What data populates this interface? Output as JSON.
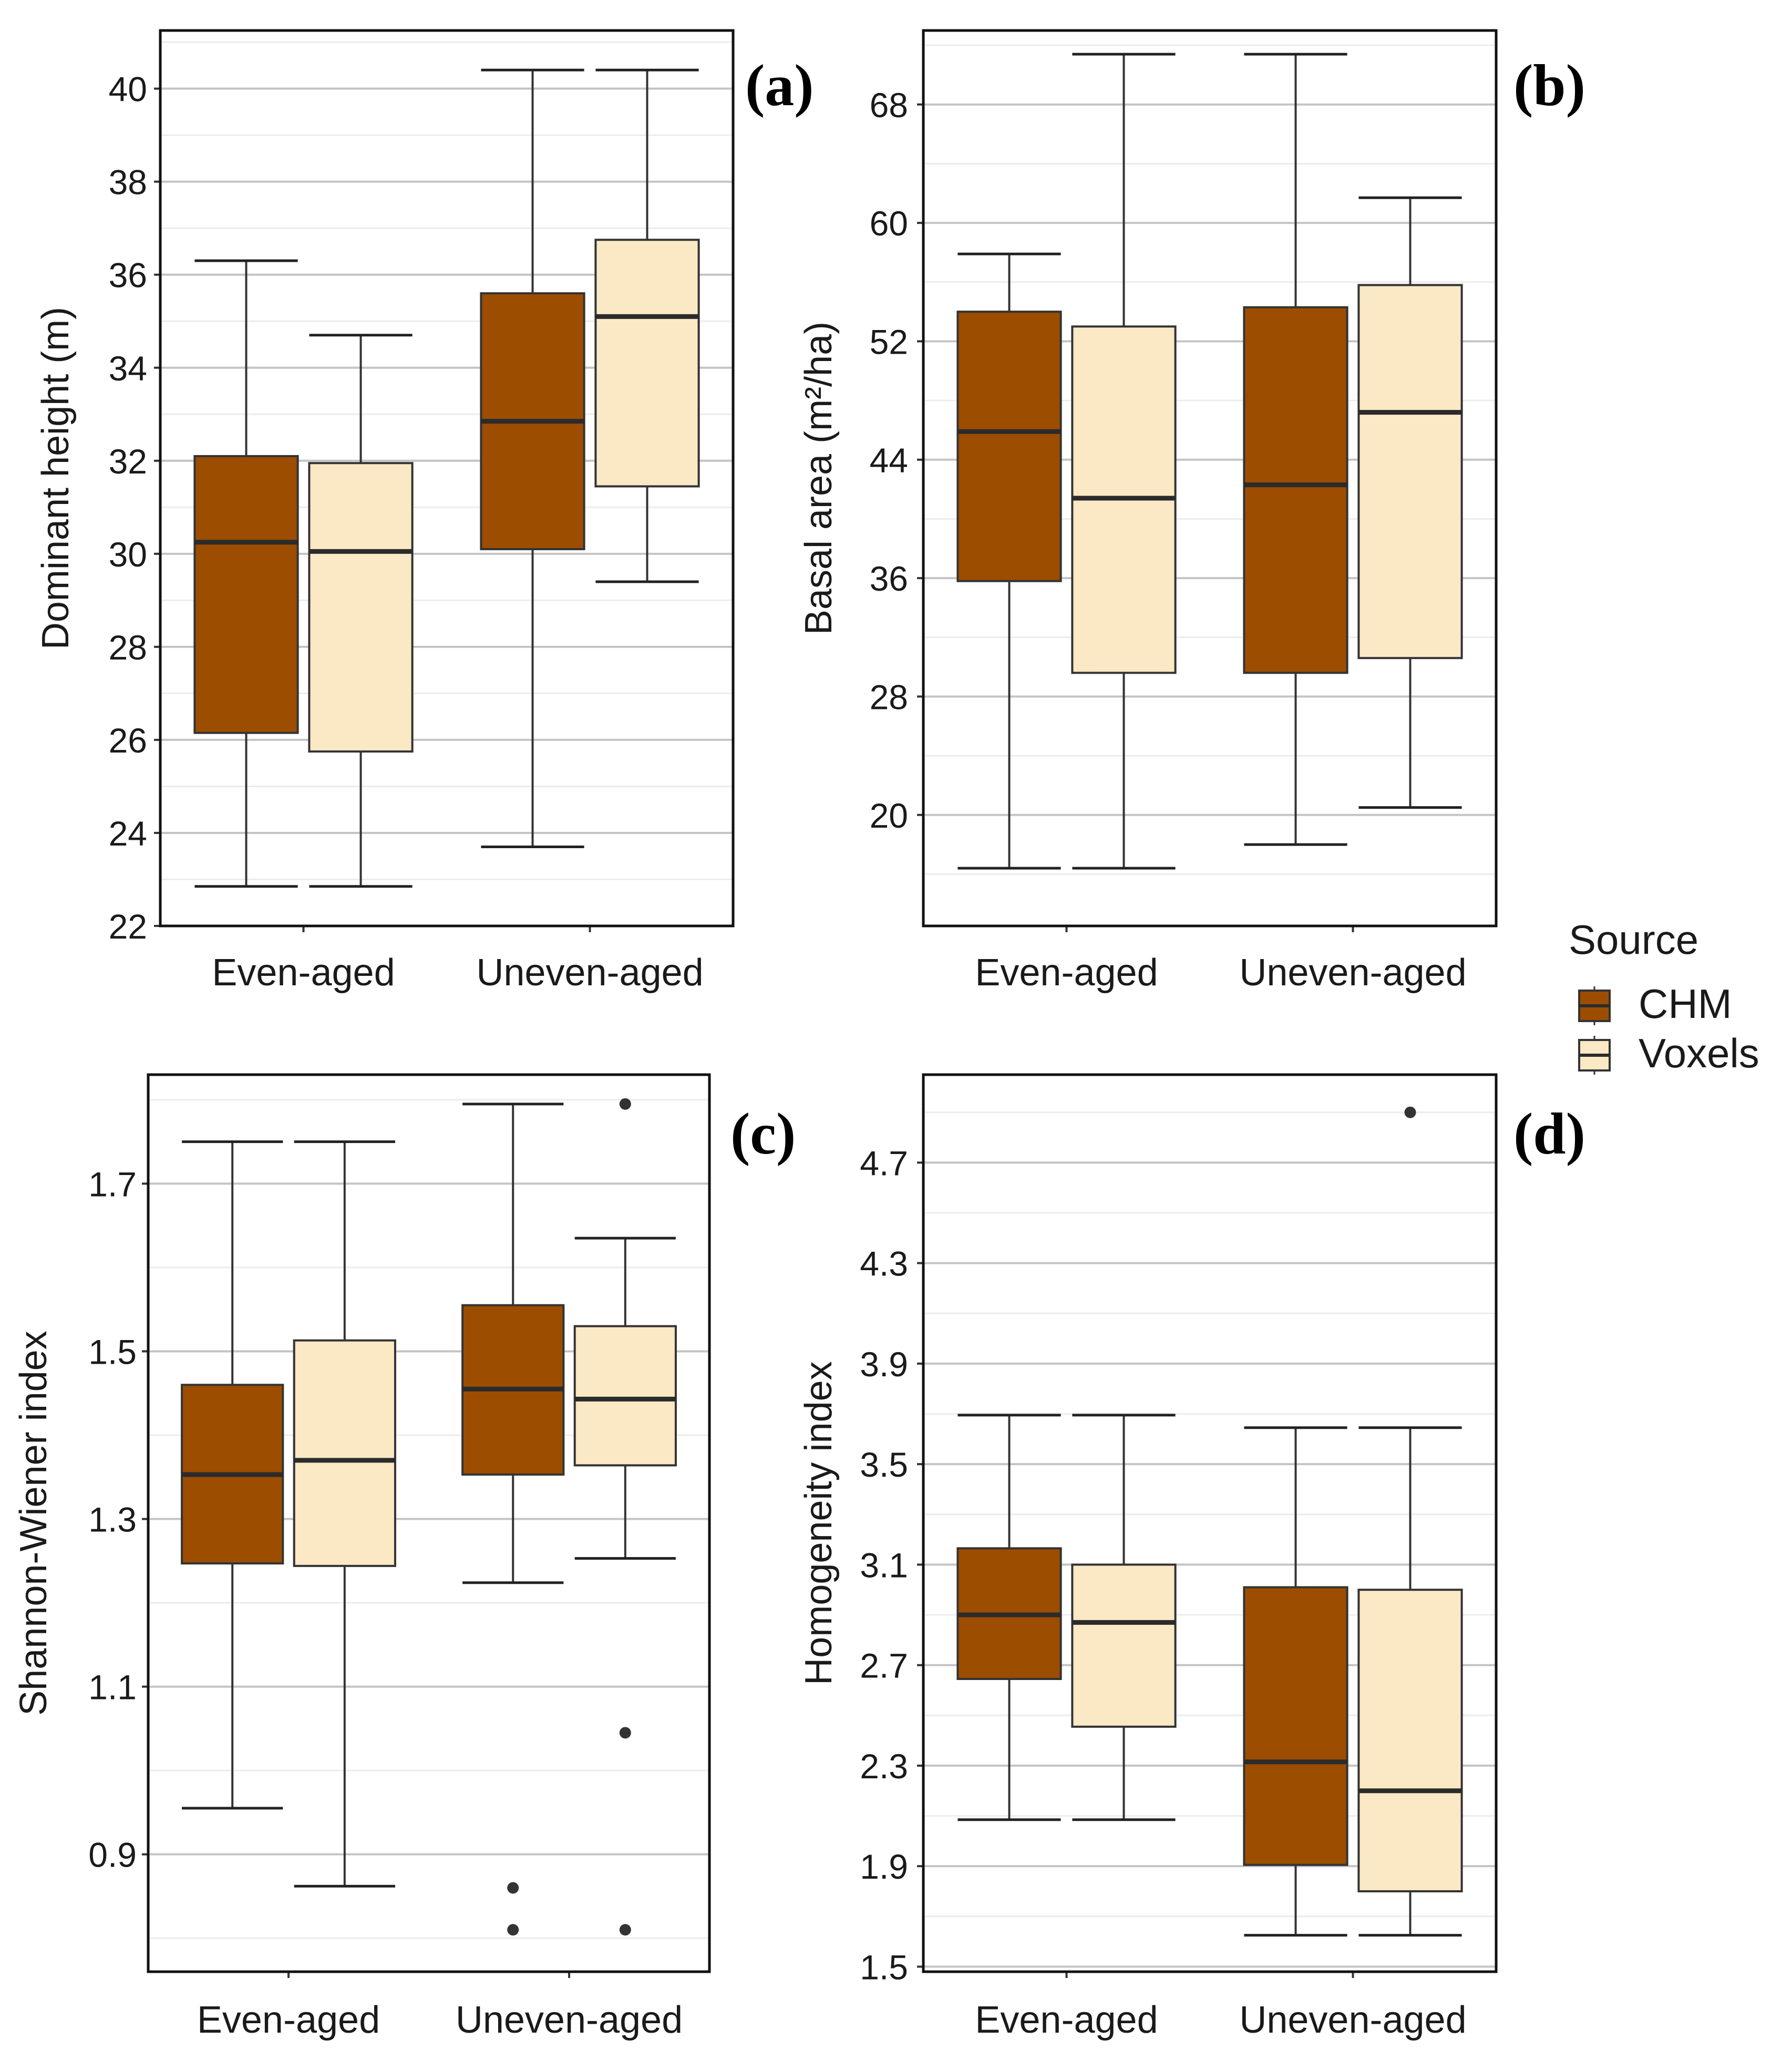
{
  "legend": {
    "title": "Source",
    "items": [
      {
        "label": "CHM",
        "color": "#9C4D00"
      },
      {
        "label": "Voxels",
        "color": "#FBE8C5"
      }
    ]
  },
  "chart_data": [
    {
      "type": "box",
      "panel_label": "(a)",
      "ylabel": "Dominant height (m)",
      "categories": [
        "Even-aged",
        "Uneven-aged"
      ],
      "ylim": [
        22,
        41.25
      ],
      "yticks": [
        22,
        24,
        26,
        28,
        30,
        32,
        34,
        36,
        38,
        40
      ],
      "ytick_labels": [
        "22",
        "24",
        "26",
        "28",
        "30",
        "32",
        "34",
        "36",
        "38",
        "40"
      ],
      "series": [
        {
          "name": "CHM",
          "boxes": [
            {
              "category": "Even-aged",
              "min": 22.85,
              "q1": 26.15,
              "median": 30.25,
              "q3": 32.1,
              "max": 36.3,
              "outliers": []
            },
            {
              "category": "Uneven-aged",
              "min": 23.7,
              "q1": 30.1,
              "median": 32.85,
              "q3": 35.6,
              "max": 40.4,
              "outliers": []
            }
          ]
        },
        {
          "name": "Voxels",
          "boxes": [
            {
              "category": "Even-aged",
              "min": 22.85,
              "q1": 25.75,
              "median": 30.05,
              "q3": 31.95,
              "max": 34.7,
              "outliers": []
            },
            {
              "category": "Uneven-aged",
              "min": 29.4,
              "q1": 31.45,
              "median": 35.1,
              "q3": 36.75,
              "max": 40.4,
              "outliers": []
            }
          ]
        }
      ]
    },
    {
      "type": "box",
      "panel_label": "(b)",
      "ylabel": "Basal area (m²/ha)",
      "categories": [
        "Even-aged",
        "Uneven-aged"
      ],
      "ylim": [
        12.5,
        73
      ],
      "yticks": [
        20,
        28,
        36,
        44,
        52,
        60,
        68
      ],
      "ytick_labels": [
        "20",
        "28",
        "36",
        "44",
        "52",
        "60",
        "68"
      ],
      "series": [
        {
          "name": "CHM",
          "boxes": [
            {
              "category": "Even-aged",
              "min": 16.4,
              "q1": 35.8,
              "median": 45.9,
              "q3": 54.0,
              "max": 57.9,
              "outliers": []
            },
            {
              "category": "Uneven-aged",
              "min": 18.0,
              "q1": 29.6,
              "median": 42.3,
              "q3": 54.3,
              "max": 71.4,
              "outliers": []
            }
          ]
        },
        {
          "name": "Voxels",
          "boxes": [
            {
              "category": "Even-aged",
              "min": 16.4,
              "q1": 29.6,
              "median": 41.4,
              "q3": 53.0,
              "max": 71.4,
              "outliers": []
            },
            {
              "category": "Uneven-aged",
              "min": 20.5,
              "q1": 30.6,
              "median": 47.2,
              "q3": 55.8,
              "max": 61.7,
              "outliers": []
            }
          ]
        }
      ]
    },
    {
      "type": "box",
      "panel_label": "(c)",
      "ylabel": "Shannon-Wiener index",
      "categories": [
        "Even-aged",
        "Uneven-aged"
      ],
      "ylim": [
        0.76,
        1.83
      ],
      "yticks": [
        0.9,
        1.1,
        1.3,
        1.5,
        1.7
      ],
      "ytick_labels": [
        "0.9",
        "1.1",
        "1.3",
        "1.5",
        "1.7"
      ],
      "series": [
        {
          "name": "CHM",
          "boxes": [
            {
              "category": "Even-aged",
              "min": 0.955,
              "q1": 1.247,
              "median": 1.353,
              "q3": 1.46,
              "max": 1.75,
              "outliers": []
            },
            {
              "category": "Uneven-aged",
              "min": 1.224,
              "q1": 1.353,
              "median": 1.455,
              "q3": 1.555,
              "max": 1.795,
              "outliers": [
                0.86,
                0.81
              ]
            }
          ]
        },
        {
          "name": "Voxels",
          "boxes": [
            {
              "category": "Even-aged",
              "min": 0.862,
              "q1": 1.244,
              "median": 1.37,
              "q3": 1.513,
              "max": 1.75,
              "outliers": []
            },
            {
              "category": "Uneven-aged",
              "min": 1.253,
              "q1": 1.364,
              "median": 1.443,
              "q3": 1.53,
              "max": 1.635,
              "outliers": [
                1.795,
                1.045,
                0.81
              ]
            }
          ]
        }
      ]
    },
    {
      "type": "box",
      "panel_label": "(d)",
      "ylabel": "Homogeneity index",
      "categories": [
        "Even-aged",
        "Uneven-aged"
      ],
      "ylim": [
        1.48,
        5.05
      ],
      "yticks": [
        1.5,
        1.9,
        2.3,
        2.7,
        3.1,
        3.5,
        3.9,
        4.3,
        4.7
      ],
      "ytick_labels": [
        "1.5",
        "1.9",
        "2.3",
        "2.7",
        "3.1",
        "3.5",
        "3.9",
        "4.3",
        "4.7"
      ],
      "series": [
        {
          "name": "CHM",
          "boxes": [
            {
              "category": "Even-aged",
              "min": 2.085,
              "q1": 2.645,
              "median": 2.9,
              "q3": 3.165,
              "max": 3.695,
              "outliers": []
            },
            {
              "category": "Uneven-aged",
              "min": 1.625,
              "q1": 1.905,
              "median": 2.315,
              "q3": 3.01,
              "max": 3.645,
              "outliers": []
            }
          ]
        },
        {
          "name": "Voxels",
          "boxes": [
            {
              "category": "Even-aged",
              "min": 2.085,
              "q1": 2.455,
              "median": 2.87,
              "q3": 3.1,
              "max": 3.695,
              "outliers": []
            },
            {
              "category": "Uneven-aged",
              "min": 1.625,
              "q1": 1.8,
              "median": 2.2,
              "q3": 3.0,
              "max": 3.645,
              "outliers": [
                4.9
              ]
            }
          ]
        }
      ]
    }
  ]
}
